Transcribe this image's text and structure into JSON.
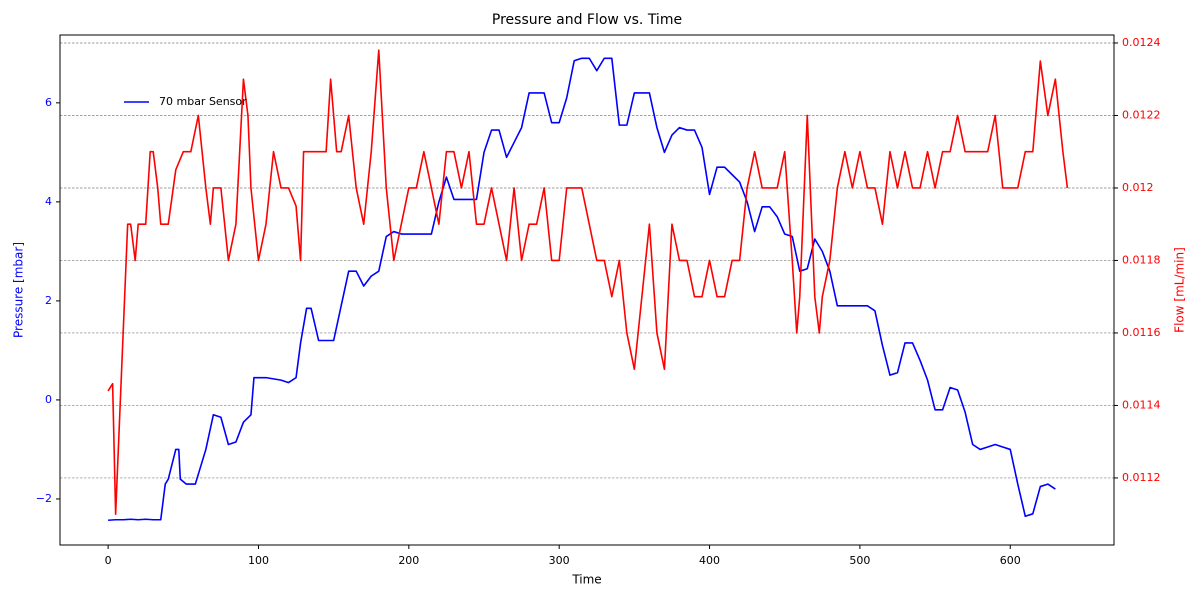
{
  "chart_data": {
    "type": "line",
    "title": "Pressure and Flow vs. Time",
    "xlabel": "Time",
    "ylabel": "Pressure [mbar]",
    "y2label": "Flow [mL/min]",
    "xlim": [
      -32,
      669
    ],
    "xticks": [
      0,
      100,
      200,
      300,
      400,
      500,
      600
    ],
    "ylim": [
      -2.93,
      7.37
    ],
    "yticks": [
      {
        "value": -2,
        "label": "−2"
      },
      0,
      2,
      4,
      6
    ],
    "y2lim": [
      0.011015,
      0.012422
    ],
    "y2ticks": [
      0.0112,
      0.0114,
      0.0116,
      0.0118,
      0.012,
      0.0122,
      0.0124
    ],
    "grid": "y2",
    "legend": "upper left",
    "series": [
      {
        "name": "70 mbar Sensor",
        "color": "#0000ff",
        "x": [
          0,
          5,
          10,
          15,
          20,
          25,
          30,
          35,
          38,
          40,
          45,
          47,
          48,
          52,
          58,
          60,
          65,
          70,
          75,
          80,
          85,
          90,
          95,
          97,
          105,
          115,
          120,
          125,
          128,
          132,
          135,
          140,
          145,
          150,
          155,
          160,
          165,
          170,
          175,
          180,
          185,
          190,
          195,
          205,
          215,
          220,
          225,
          230,
          235,
          245,
          250,
          255,
          260,
          265,
          270,
          275,
          280,
          285,
          290,
          295,
          300,
          305,
          310,
          315,
          320,
          325,
          330,
          335,
          340,
          345,
          350,
          355,
          360,
          365,
          370,
          375,
          380,
          385,
          390,
          395,
          400,
          405,
          410,
          415,
          420,
          425,
          430,
          435,
          440,
          445,
          450,
          455,
          460,
          465,
          470,
          475,
          480,
          485,
          490,
          505,
          510,
          515,
          520,
          525,
          530,
          535,
          540,
          545,
          550,
          555,
          560,
          565,
          570,
          575,
          580,
          585,
          590,
          595,
          600,
          605,
          610,
          615,
          620,
          625,
          630
        ],
        "values": [
          -2.43,
          -2.42,
          -2.42,
          -2.41,
          -2.42,
          -2.41,
          -2.42,
          -2.42,
          -1.7,
          -1.6,
          -1.0,
          -1.0,
          -1.6,
          -1.7,
          -1.7,
          -1.5,
          -1.0,
          -0.3,
          -0.35,
          -0.9,
          -0.85,
          -0.45,
          -0.3,
          0.45,
          0.45,
          0.4,
          0.35,
          0.45,
          1.15,
          1.85,
          1.85,
          1.2,
          1.2,
          1.2,
          1.9,
          2.6,
          2.6,
          2.3,
          2.5,
          2.6,
          3.3,
          3.4,
          3.35,
          3.35,
          3.35,
          4.0,
          4.5,
          4.05,
          4.05,
          4.05,
          5.0,
          5.45,
          5.45,
          4.9,
          5.2,
          5.5,
          6.2,
          6.2,
          6.2,
          5.6,
          5.6,
          6.1,
          6.85,
          6.9,
          6.9,
          6.65,
          6.9,
          6.9,
          5.55,
          5.55,
          6.2,
          6.2,
          6.2,
          5.5,
          5.0,
          5.35,
          5.5,
          5.45,
          5.45,
          5.1,
          4.15,
          4.7,
          4.7,
          4.55,
          4.4,
          4.0,
          3.4,
          3.9,
          3.9,
          3.7,
          3.35,
          3.3,
          2.6,
          2.65,
          3.25,
          3.0,
          2.6,
          1.9,
          1.9,
          1.9,
          1.8,
          1.1,
          0.5,
          0.55,
          1.15,
          1.15,
          0.8,
          0.4,
          -0.2,
          -0.2,
          0.25,
          0.2,
          -0.25,
          -0.9,
          -1.0,
          -0.95,
          -0.9,
          -0.95,
          -1.0,
          -1.7,
          -2.35,
          -2.3,
          -1.75,
          -1.7,
          -1.8
        ]
      },
      {
        "color": "#ff0000",
        "axis": "y2",
        "x": [
          0,
          3,
          5,
          8,
          10,
          13,
          15,
          18,
          20,
          25,
          28,
          30,
          33,
          35,
          40,
          45,
          50,
          55,
          60,
          65,
          68,
          70,
          75,
          80,
          85,
          90,
          93,
          95,
          100,
          105,
          110,
          115,
          120,
          125,
          128,
          130,
          135,
          140,
          145,
          148,
          152,
          155,
          160,
          165,
          170,
          175,
          180,
          185,
          190,
          195,
          200,
          205,
          210,
          215,
          220,
          225,
          230,
          235,
          240,
          245,
          250,
          255,
          260,
          265,
          270,
          275,
          280,
          285,
          290,
          295,
          300,
          305,
          310,
          315,
          320,
          325,
          330,
          335,
          340,
          345,
          350,
          355,
          360,
          365,
          370,
          375,
          380,
          385,
          390,
          395,
          400,
          405,
          410,
          415,
          420,
          425,
          430,
          435,
          440,
          445,
          450,
          455,
          458,
          460,
          465,
          470,
          473,
          475,
          480,
          485,
          490,
          495,
          500,
          505,
          510,
          515,
          520,
          525,
          530,
          535,
          540,
          545,
          550,
          555,
          560,
          565,
          570,
          575,
          580,
          585,
          590,
          595,
          600,
          605,
          610,
          615,
          620,
          625,
          630,
          635,
          638
        ],
        "values": [
          0.01144,
          0.01146,
          0.0111,
          0.0114,
          0.0116,
          0.0119,
          0.0119,
          0.0118,
          0.0119,
          0.0119,
          0.0121,
          0.0121,
          0.012,
          0.0119,
          0.0119,
          0.01205,
          0.0121,
          0.0121,
          0.0122,
          0.012,
          0.0119,
          0.012,
          0.012,
          0.0118,
          0.0119,
          0.0123,
          0.0122,
          0.012,
          0.0118,
          0.0119,
          0.0121,
          0.012,
          0.012,
          0.01195,
          0.0118,
          0.0121,
          0.0121,
          0.0121,
          0.0121,
          0.0123,
          0.0121,
          0.0121,
          0.0122,
          0.012,
          0.0119,
          0.0121,
          0.01238,
          0.012,
          0.0118,
          0.0119,
          0.012,
          0.012,
          0.0121,
          0.012,
          0.0119,
          0.0121,
          0.0121,
          0.012,
          0.0121,
          0.0119,
          0.0119,
          0.012,
          0.0119,
          0.0118,
          0.012,
          0.0118,
          0.0119,
          0.0119,
          0.012,
          0.0118,
          0.0118,
          0.012,
          0.012,
          0.012,
          0.0119,
          0.0118,
          0.0118,
          0.0117,
          0.0118,
          0.0116,
          0.0115,
          0.0117,
          0.0119,
          0.0116,
          0.0115,
          0.0119,
          0.0118,
          0.0118,
          0.0117,
          0.0117,
          0.0118,
          0.0117,
          0.0117,
          0.0118,
          0.0118,
          0.012,
          0.0121,
          0.012,
          0.012,
          0.012,
          0.0121,
          0.0118,
          0.0116,
          0.0117,
          0.0122,
          0.0117,
          0.0116,
          0.0117,
          0.0118,
          0.012,
          0.0121,
          0.012,
          0.0121,
          0.012,
          0.012,
          0.0119,
          0.0121,
          0.012,
          0.0121,
          0.012,
          0.012,
          0.0121,
          0.012,
          0.0121,
          0.0121,
          0.0122,
          0.0121,
          0.0121,
          0.0121,
          0.0121,
          0.0122,
          0.012,
          0.012,
          0.012,
          0.0121,
          0.0121,
          0.01235,
          0.0122,
          0.0123,
          0.0121,
          0.012
        ]
      }
    ]
  }
}
